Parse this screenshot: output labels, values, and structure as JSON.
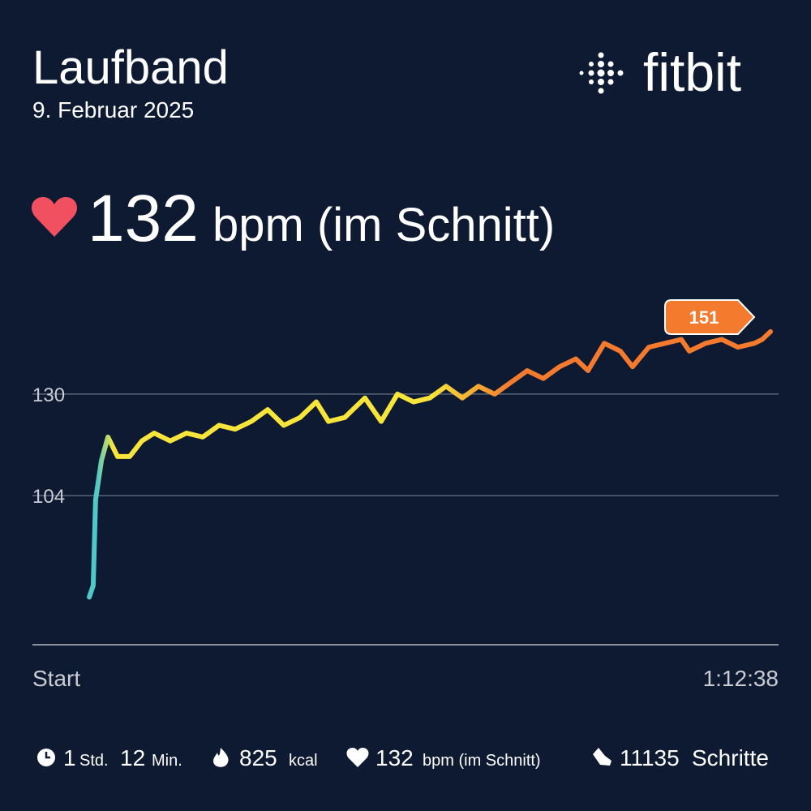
{
  "header": {
    "title": "Laufband",
    "date": "9. Februar 2025",
    "brand": "fitbit",
    "average": 132,
    "average_unit": "bpm (im Schnitt)"
  },
  "chart_data": {
    "type": "line",
    "x": [
      332,
      355,
      369,
      403,
      441,
      497,
      568,
      639,
      711,
      805,
      900,
      995,
      1090,
      1184,
      1279,
      1374,
      1468,
      1563,
      1658,
      1729,
      1824,
      1942,
      2037,
      2132,
      2226,
      2321,
      2416,
      2511,
      2605,
      2700,
      2795,
      2890,
      2984,
      3079,
      3174,
      3245,
      3340,
      3434,
      3505,
      3600,
      3695,
      3790,
      3837,
      3932,
      4026,
      4121,
      4216,
      4263,
      4311
    ],
    "values": [
      78,
      81,
      103,
      113,
      119,
      114,
      114,
      118,
      120,
      118,
      120,
      119,
      122,
      121,
      123,
      126,
      122,
      124,
      128,
      123,
      124,
      129,
      123,
      130,
      128,
      129,
      132,
      129,
      132,
      130,
      133,
      136,
      134,
      137,
      139,
      136,
      143,
      141,
      137,
      142,
      143,
      144,
      141,
      143,
      144,
      142,
      143,
      144,
      146
    ],
    "xlim": [
      0,
      4358
    ],
    "xticks": [
      {
        "value": 0,
        "label": "Start"
      },
      {
        "value": 4358,
        "label": "1:12:38"
      }
    ],
    "ylim": [
      66,
      152
    ],
    "yticks": [
      104,
      130
    ],
    "grid": true,
    "colors": [
      "#4fc8c8",
      "#f7e53b",
      "#f47a2d"
    ],
    "max_label": 151
  },
  "stats": [
    {
      "value": 1,
      "unit": "Std."
    },
    {
      "value": 12,
      "unit": "Min."
    },
    {
      "value": 825,
      "unit": "kcal"
    },
    {
      "value": 132,
      "unit": "bpm (im Schnitt)"
    },
    {
      "value": 11135,
      "unit": "Schritte"
    }
  ]
}
